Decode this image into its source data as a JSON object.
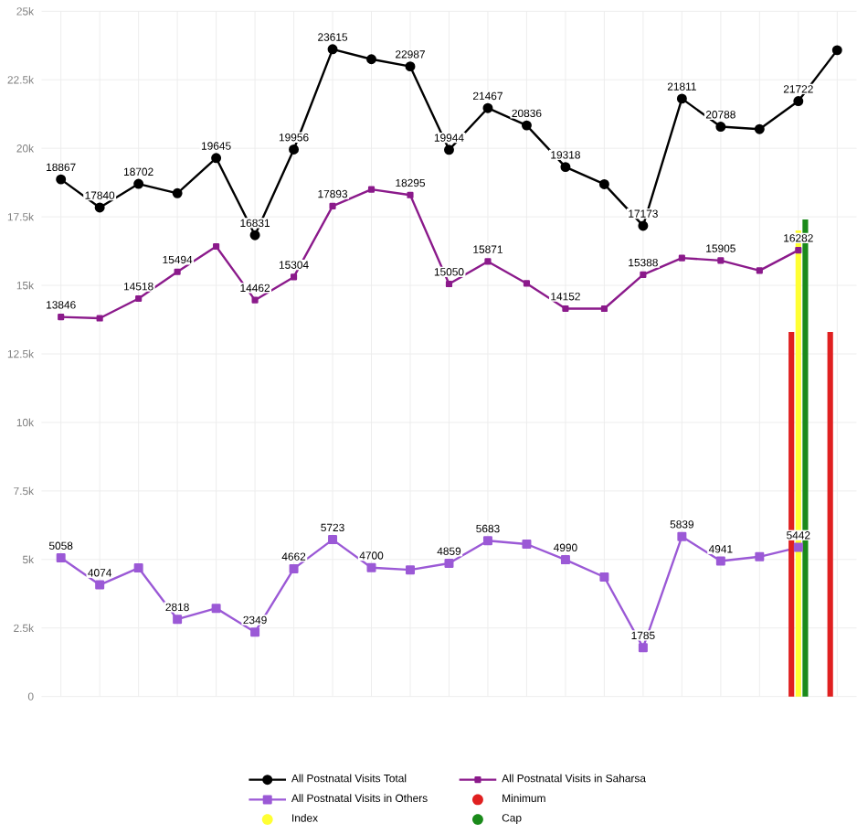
{
  "chart_data": {
    "type": "line",
    "categories": [
      null,
      null,
      null,
      null,
      null,
      null,
      null,
      null,
      null,
      null,
      null,
      null,
      null,
      null,
      null,
      null,
      null,
      null,
      null,
      null,
      null
    ],
    "series": [
      {
        "name": "All Postnatal Visits Total",
        "color": "#000000",
        "marker": "circle",
        "values": [
          18867,
          17840,
          18702,
          18360,
          19645,
          16831,
          19956,
          23615,
          23250,
          22987,
          19944,
          21467,
          20836,
          19318,
          18690,
          17173,
          21811,
          20788,
          20700,
          21722,
          23580
        ],
        "value_labels": [
          "18867",
          "17840",
          "18702",
          null,
          "19645",
          "16831",
          "19956",
          "23615",
          null,
          "22987",
          "19944",
          "21467",
          "20836",
          "19318",
          null,
          "17173",
          "21811",
          "20788",
          null,
          "21722",
          null
        ]
      },
      {
        "name": "All Postnatal Visits in Saharsa",
        "color": "#8b1a8b",
        "marker": "square",
        "values": [
          13846,
          13800,
          14518,
          15494,
          16420,
          14462,
          15304,
          17893,
          18500,
          18295,
          15050,
          15871,
          15070,
          14152,
          14150,
          15388,
          16000,
          15905,
          15540,
          16282,
          null
        ],
        "value_labels": [
          "13846",
          null,
          "14518",
          "15494",
          null,
          "14462",
          "15304",
          "17893",
          null,
          "18295",
          "15050",
          "15871",
          null,
          "14152",
          null,
          "15388",
          null,
          "15905",
          null,
          "16282",
          null
        ]
      },
      {
        "name": "All Postnatal Visits in Others",
        "color": "#9b59d6",
        "marker": "square",
        "values": [
          5058,
          4074,
          4690,
          2818,
          3220,
          2349,
          4662,
          5723,
          4700,
          4620,
          4859,
          5683,
          5560,
          4990,
          4360,
          1785,
          5839,
          4941,
          5100,
          5442,
          null
        ],
        "value_labels": [
          "5058",
          "4074",
          null,
          "2818",
          null,
          "2349",
          "4662",
          "5723",
          "4700",
          null,
          "4859",
          "5683",
          null,
          "4990",
          null,
          "1785",
          "5839",
          "4941",
          null,
          "5442",
          null
        ]
      },
      {
        "name": "Minimum",
        "type": "bar",
        "color": "#e02020",
        "values": [
          null,
          null,
          null,
          null,
          null,
          null,
          null,
          null,
          null,
          null,
          null,
          null,
          null,
          null,
          null,
          null,
          null,
          null,
          null,
          13300,
          13300
        ]
      },
      {
        "name": "Index",
        "type": "bar",
        "color": "#ffff33",
        "values": [
          null,
          null,
          null,
          null,
          null,
          null,
          null,
          null,
          null,
          null,
          null,
          null,
          null,
          null,
          null,
          null,
          null,
          null,
          null,
          17000,
          null
        ]
      },
      {
        "name": "Cap",
        "type": "bar",
        "color": "#1a8a1a",
        "values": [
          null,
          null,
          null,
          null,
          null,
          null,
          null,
          null,
          null,
          null,
          null,
          null,
          null,
          null,
          null,
          null,
          null,
          null,
          null,
          17400,
          null
        ]
      }
    ],
    "ylim": [
      0,
      25000
    ],
    "yticks": [
      {
        "value": 0,
        "label": "0"
      },
      {
        "value": 2500,
        "label": "2.5k"
      },
      {
        "value": 5000,
        "label": "5k"
      },
      {
        "value": 7500,
        "label": "7.5k"
      },
      {
        "value": 10000,
        "label": "10k"
      },
      {
        "value": 12500,
        "label": "12.5k"
      },
      {
        "value": 15000,
        "label": "15k"
      },
      {
        "value": 17500,
        "label": "17.5k"
      },
      {
        "value": 20000,
        "label": "20k"
      },
      {
        "value": 22500,
        "label": "22.5k"
      },
      {
        "value": 25000,
        "label": "25k"
      }
    ],
    "grid": true,
    "legend": "bottom"
  }
}
